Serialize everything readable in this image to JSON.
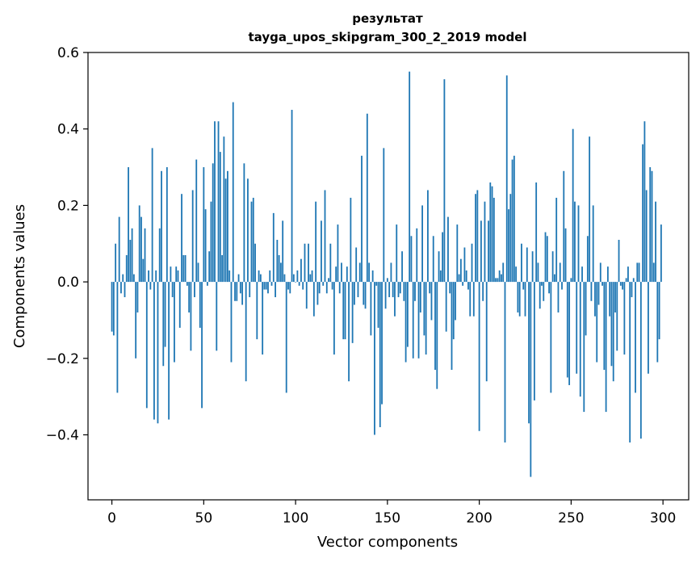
{
  "chart_data": {
    "type": "bar",
    "title_line1": "результат",
    "title_line2": "tayga_upos_skipgram_300_2_2019 model",
    "xlabel": "Vector components",
    "ylabel": "Components values",
    "xlim": [
      -13,
      314
    ],
    "ylim": [
      -0.57,
      0.6
    ],
    "x_ticks": [
      0,
      50,
      100,
      150,
      200,
      250,
      300
    ],
    "x_tick_labels": [
      "0",
      "50",
      "100",
      "150",
      "200",
      "250",
      "300"
    ],
    "y_ticks": [
      -0.4,
      -0.2,
      0.0,
      0.2,
      0.4,
      0.6
    ],
    "y_tick_labels": [
      "−0.4",
      "−0.2",
      "0.0",
      "0.2",
      "0.4",
      "0.6"
    ],
    "bar_color": "#1f77b4",
    "grid": false,
    "x": [
      0,
      1,
      2,
      3,
      4,
      5,
      6,
      7,
      8,
      9,
      10,
      11,
      12,
      13,
      14,
      15,
      16,
      17,
      18,
      19,
      20,
      21,
      22,
      23,
      24,
      25,
      26,
      27,
      28,
      29,
      30,
      31,
      32,
      33,
      34,
      35,
      36,
      37,
      38,
      39,
      40,
      41,
      42,
      43,
      44,
      45,
      46,
      47,
      48,
      49,
      50,
      51,
      52,
      53,
      54,
      55,
      56,
      57,
      58,
      59,
      60,
      61,
      62,
      63,
      64,
      65,
      66,
      67,
      68,
      69,
      70,
      71,
      72,
      73,
      74,
      75,
      76,
      77,
      78,
      79,
      80,
      81,
      82,
      83,
      84,
      85,
      86,
      87,
      88,
      89,
      90,
      91,
      92,
      93,
      94,
      95,
      96,
      97,
      98,
      99,
      100,
      101,
      102,
      103,
      104,
      105,
      106,
      107,
      108,
      109,
      110,
      111,
      112,
      113,
      114,
      115,
      116,
      117,
      118,
      119,
      120,
      121,
      122,
      123,
      124,
      125,
      126,
      127,
      128,
      129,
      130,
      131,
      132,
      133,
      134,
      135,
      136,
      137,
      138,
      139,
      140,
      141,
      142,
      143,
      144,
      145,
      146,
      147,
      148,
      149,
      150,
      151,
      152,
      153,
      154,
      155,
      156,
      157,
      158,
      159,
      160,
      161,
      162,
      163,
      164,
      165,
      166,
      167,
      168,
      169,
      170,
      171,
      172,
      173,
      174,
      175,
      176,
      177,
      178,
      179,
      180,
      181,
      182,
      183,
      184,
      185,
      186,
      187,
      188,
      189,
      190,
      191,
      192,
      193,
      194,
      195,
      196,
      197,
      198,
      199,
      200,
      201,
      202,
      203,
      204,
      205,
      206,
      207,
      208,
      209,
      210,
      211,
      212,
      213,
      214,
      215,
      216,
      217,
      218,
      219,
      220,
      221,
      222,
      223,
      224,
      225,
      226,
      227,
      228,
      229,
      230,
      231,
      232,
      233,
      234,
      235,
      236,
      237,
      238,
      239,
      240,
      241,
      242,
      243,
      244,
      245,
      246,
      247,
      248,
      249,
      250,
      251,
      252,
      253,
      254,
      255,
      256,
      257,
      258,
      259,
      260,
      261,
      262,
      263,
      264,
      265,
      266,
      267,
      268,
      269,
      270,
      271,
      272,
      273,
      274,
      275,
      276,
      277,
      278,
      279,
      280,
      281,
      282,
      283,
      284,
      285,
      286,
      287,
      288,
      289,
      290,
      291,
      292,
      293,
      294,
      295,
      296,
      297,
      298,
      299
    ],
    "values": [
      -0.13,
      -0.14,
      0.1,
      -0.29,
      0.17,
      -0.03,
      0.02,
      -0.04,
      0.07,
      0.3,
      0.11,
      0.14,
      0.02,
      -0.2,
      -0.08,
      0.2,
      0.17,
      0.06,
      0.14,
      -0.33,
      0.03,
      -0.02,
      0.35,
      -0.36,
      0.03,
      -0.37,
      0.14,
      0.29,
      -0.22,
      -0.17,
      0.3,
      -0.36,
      0.04,
      -0.04,
      -0.21,
      0.04,
      0.03,
      -0.12,
      0.23,
      0.07,
      0.07,
      -0.01,
      -0.08,
      -0.18,
      0.24,
      -0.04,
      0.32,
      0.05,
      -0.12,
      -0.33,
      0.3,
      0.19,
      -0.01,
      0.08,
      0.21,
      0.31,
      0.42,
      -0.18,
      0.42,
      0.34,
      0.07,
      0.38,
      0.27,
      0.29,
      0.03,
      -0.21,
      0.47,
      -0.05,
      -0.05,
      0.02,
      -0.03,
      -0.06,
      0.31,
      -0.26,
      0.27,
      -0.04,
      0.21,
      0.22,
      0.1,
      -0.15,
      0.03,
      0.02,
      -0.19,
      -0.02,
      -0.02,
      -0.03,
      0.03,
      -0.01,
      0.18,
      -0.04,
      0.11,
      0.07,
      0.05,
      0.16,
      0.02,
      -0.29,
      -0.02,
      -0.03,
      0.45,
      0.02,
      0.0,
      0.03,
      -0.01,
      0.06,
      -0.02,
      0.1,
      -0.07,
      0.1,
      0.02,
      0.03,
      -0.09,
      0.21,
      -0.06,
      -0.03,
      0.16,
      -0.01,
      0.24,
      -0.03,
      0.01,
      0.1,
      -0.02,
      -0.19,
      0.04,
      0.15,
      -0.03,
      0.05,
      -0.15,
      -0.15,
      0.04,
      -0.26,
      0.22,
      -0.16,
      -0.06,
      0.09,
      -0.04,
      0.05,
      0.33,
      -0.06,
      -0.07,
      0.44,
      0.05,
      -0.14,
      0.03,
      -0.4,
      -0.01,
      -0.12,
      -0.38,
      -0.32,
      0.35,
      -0.07,
      0.01,
      -0.04,
      0.05,
      -0.04,
      -0.09,
      0.15,
      -0.04,
      -0.03,
      0.08,
      -0.05,
      -0.21,
      -0.17,
      0.55,
      0.12,
      -0.2,
      -0.05,
      0.14,
      -0.2,
      -0.08,
      0.2,
      -0.14,
      -0.19,
      0.24,
      -0.03,
      -0.1,
      0.12,
      -0.23,
      -0.28,
      0.08,
      0.03,
      0.13,
      0.53,
      -0.13,
      0.17,
      -0.03,
      -0.23,
      -0.15,
      -0.1,
      0.15,
      0.02,
      0.06,
      -0.01,
      0.09,
      0.03,
      -0.02,
      -0.09,
      0.1,
      -0.09,
      0.23,
      0.24,
      -0.39,
      0.16,
      -0.05,
      0.21,
      -0.26,
      0.16,
      0.26,
      0.25,
      0.22,
      0.01,
      0.01,
      0.03,
      0.02,
      0.05,
      -0.42,
      0.54,
      0.19,
      0.23,
      0.32,
      0.33,
      0.04,
      -0.08,
      -0.09,
      0.1,
      -0.02,
      -0.09,
      0.09,
      -0.37,
      -0.51,
      0.08,
      -0.31,
      0.26,
      0.05,
      -0.07,
      -0.01,
      -0.05,
      0.13,
      0.12,
      -0.03,
      -0.29,
      0.08,
      0.02,
      0.22,
      -0.08,
      0.05,
      -0.02,
      0.29,
      0.14,
      -0.25,
      -0.27,
      0.01,
      0.4,
      0.21,
      -0.24,
      0.2,
      -0.3,
      0.04,
      -0.34,
      -0.14,
      0.12,
      0.38,
      -0.05,
      0.2,
      -0.09,
      -0.21,
      -0.06,
      0.05,
      -0.01,
      -0.23,
      -0.34,
      0.04,
      -0.09,
      -0.22,
      -0.26,
      -0.08,
      -0.18,
      0.11,
      -0.01,
      -0.02,
      -0.19,
      0.01,
      0.04,
      -0.42,
      -0.04,
      0.01,
      -0.29,
      0.05,
      0.05,
      -0.41,
      0.36,
      0.42,
      0.24,
      -0.24,
      0.3,
      0.29,
      0.05,
      0.21,
      -0.21,
      -0.15,
      0.15
    ]
  }
}
